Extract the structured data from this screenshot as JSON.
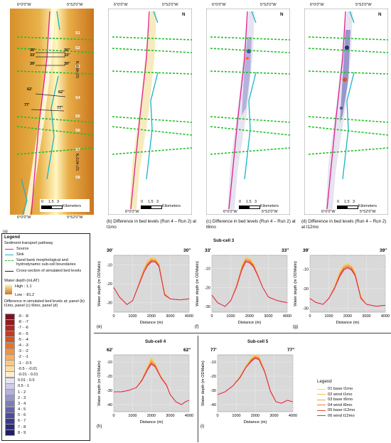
{
  "maps": {
    "coord_top_left": "6°0'0\"W",
    "coord_top_right": "5°52'0\"W",
    "coord_bottom_left": "6°0'0\"W",
    "coord_bottom_right": "5°52'0\"W",
    "lat_upper": "52°48'0\"N",
    "lat_lower": "52°40'0\"N",
    "north": "N",
    "scale_labels": [
      "0",
      "1.5",
      "3"
    ],
    "scale_unit": "Kilometers",
    "subcells": [
      "S1",
      "S2",
      "S3",
      "S4",
      "S5",
      "S6",
      "S7",
      "S8"
    ],
    "section_labels": {
      "a30": "30'",
      "b30": "30''",
      "a33": "33'",
      "b33": "33''",
      "a39": "39'",
      "b39": "39''",
      "a62": "62'",
      "b62": "62''",
      "a77": "77'",
      "b77": "77''"
    },
    "captions": {
      "a": "(a)",
      "b": "(b) Difference in bed levels (Run 4 – Run 2) at t1mo",
      "c": "(c) Difference in bed levels (Run 4 – Run 2) at t6mo",
      "d": "(d) Difference in bed levels (Run 4 – Run 2) at t12mo"
    }
  },
  "legend": {
    "title": "Legend",
    "pathway_title": "Sediment transport pathway",
    "source": "Source",
    "sink": "Sink",
    "boundaries": "Sand bank morphological and hydrodynamic sub-cell boundaries",
    "cross_section": "Cross-section of simulated bed levels",
    "water_depth": "Water depth (mLAT)",
    "high": "High : 1.1",
    "low": "Low : -81.2",
    "diff_title": "Difference in simulated bed levels at; panel (b) t1mo, panel (c) t6mo, panel (d)",
    "classes": [
      {
        "label": "-9 - -8",
        "color": "#7a1420"
      },
      {
        "label": "-8 - -7",
        "color": "#8f1d22"
      },
      {
        "label": "-7 - -6",
        "color": "#a82a22"
      },
      {
        "label": "-6 - -5",
        "color": "#c23b1f"
      },
      {
        "label": "-5 - -4",
        "color": "#d8561e"
      },
      {
        "label": "-4 - -3",
        "color": "#e8742b"
      },
      {
        "label": "-3 - -2",
        "color": "#f19341"
      },
      {
        "label": "-2 - -1",
        "color": "#f6b060"
      },
      {
        "label": "-1 - -0.5",
        "color": "#f9c988"
      },
      {
        "label": "-0.5 - -0.01",
        "color": "#fbdcab"
      },
      {
        "label": "-0.01 - 0.01",
        "color": "#fdf0cf"
      },
      {
        "label": "0.01 - 0.5",
        "color": "#e6e4f2"
      },
      {
        "label": "0.5 - 1",
        "color": "#cfcce8"
      },
      {
        "label": "1 - 2",
        "color": "#b3b2dc"
      },
      {
        "label": "2 - 3",
        "color": "#9797cd"
      },
      {
        "label": "3 - 4",
        "color": "#7c7cbe"
      },
      {
        "label": "4 - 5",
        "color": "#6363ae"
      },
      {
        "label": "5 - 6",
        "color": "#4d4c9c"
      },
      {
        "label": "6 - 7",
        "color": "#3a3a8a"
      },
      {
        "label": "7 - 8",
        "color": "#2c2b78"
      },
      {
        "label": "8 - 9",
        "color": "#1f1d63"
      }
    ]
  },
  "profiles": {
    "subcell3": "Sub-cell 3",
    "subcell4": "Sub-cell 4",
    "subcell5": "Sub-cell 5",
    "ylabel": "Water depth (m ODMalin)",
    "xlabel": "Distance (m)",
    "panels": {
      "e": {
        "letter": "(e)",
        "left": "30'",
        "right": "30''"
      },
      "f": {
        "letter": "(f)",
        "left": "33'",
        "right": "33''"
      },
      "g": {
        "letter": "(g)",
        "left": "39'",
        "right": "39''"
      },
      "h": {
        "letter": "(h)",
        "left": "62'",
        "right": "62''"
      },
      "i": {
        "letter": "(i)",
        "left": "77'",
        "right": "77''"
      }
    },
    "series_legend_title": "Legend",
    "series": [
      {
        "name": "01 base t1mo",
        "color": "#fbd84a"
      },
      {
        "name": "02 wind t1mo",
        "color": "#f7c04a"
      },
      {
        "name": "03 base t6mo",
        "color": "#f2a24a"
      },
      {
        "name": "04 wind t6mo",
        "color": "#ee7a3a"
      },
      {
        "name": "05 base t12mo",
        "color": "#e34a2c"
      },
      {
        "name": "06 wind t12mo",
        "color": "#e0285a"
      }
    ]
  },
  "chart_data": [
    {
      "type": "line",
      "panel": "e",
      "xlabel": "Distance (m)",
      "ylabel": "Water depth (m ODMalin)",
      "xlim": [
        0,
        4000
      ],
      "ylim": [
        -35,
        -5
      ],
      "xticks": [
        0,
        1000,
        2000,
        3000,
        4000
      ],
      "yticks": [
        -10,
        -20,
        -30
      ],
      "x": [
        0,
        300,
        700,
        1000,
        1300,
        1600,
        1800,
        2000,
        2200,
        2400,
        2700,
        3000,
        3500,
        4000
      ],
      "series": [
        {
          "name": "01 base t1mo",
          "values": [
            -22,
            -27,
            -31,
            -29,
            -21,
            -12,
            -8,
            -6,
            -6.5,
            -9,
            -25,
            -28,
            -28.5,
            -28
          ]
        },
        {
          "name": "02 wind t1mo",
          "values": [
            -22,
            -27,
            -31,
            -29,
            -21,
            -12,
            -8,
            -6.5,
            -7,
            -9.5,
            -25,
            -28,
            -28.5,
            -28
          ]
        },
        {
          "name": "03 base t6mo",
          "values": [
            -22,
            -27,
            -31,
            -29,
            -21,
            -13,
            -9,
            -7,
            -7.5,
            -10,
            -25.5,
            -28,
            -28.5,
            -28
          ]
        },
        {
          "name": "04 wind t6mo",
          "values": [
            -22,
            -27,
            -31,
            -29,
            -21,
            -13,
            -9.5,
            -7.5,
            -8,
            -10.5,
            -25.5,
            -28,
            -28.5,
            -28
          ]
        },
        {
          "name": "05 base t12mo",
          "values": [
            -22,
            -27,
            -31,
            -29,
            -21.5,
            -14,
            -10,
            -8,
            -8,
            -10.5,
            -26,
            -28,
            -28.5,
            -28
          ]
        },
        {
          "name": "06 wind t12mo",
          "values": [
            -22,
            -27,
            -31,
            -29,
            -21.5,
            -14,
            -10.5,
            -8.5,
            -8.5,
            -11,
            -26,
            -28,
            -28.5,
            -28
          ]
        }
      ]
    },
    {
      "type": "line",
      "panel": "f",
      "xlabel": "Distance (m)",
      "ylabel": "Water depth (m ODMalin)",
      "xlim": [
        0,
        4000
      ],
      "ylim": [
        -33,
        -3
      ],
      "xticks": [
        0,
        1000,
        2000,
        3000,
        4000
      ],
      "yticks": [
        -10,
        -20,
        -30
      ],
      "x": [
        0,
        300,
        700,
        1000,
        1300,
        1600,
        1800,
        2000,
        2200,
        2400,
        2700,
        3000,
        3500,
        4000
      ],
      "series": [
        {
          "name": "01 base t1mo",
          "values": [
            -24,
            -28,
            -30,
            -27,
            -19,
            -8,
            -4,
            -4.5,
            -7,
            -12,
            -20,
            -25,
            -27,
            -28
          ]
        },
        {
          "name": "02 wind t1mo",
          "values": [
            -24,
            -28,
            -30,
            -27,
            -19,
            -8.5,
            -4.5,
            -5,
            -7.5,
            -12,
            -20,
            -25,
            -27,
            -28
          ]
        },
        {
          "name": "03 base t6mo",
          "values": [
            -24,
            -28,
            -30,
            -27,
            -19.5,
            -9,
            -5,
            -5.5,
            -8,
            -12.5,
            -20,
            -25,
            -27,
            -28
          ]
        },
        {
          "name": "04 wind t6mo",
          "values": [
            -24,
            -28,
            -30,
            -27,
            -19.5,
            -9.5,
            -5.5,
            -6,
            -8,
            -12.5,
            -20,
            -25,
            -27,
            -28
          ]
        },
        {
          "name": "05 base t12mo",
          "values": [
            -24,
            -28,
            -30,
            -27,
            -20,
            -10,
            -6,
            -6.5,
            -8.5,
            -13,
            -20,
            -25,
            -27,
            -28
          ]
        },
        {
          "name": "06 wind t12mo",
          "values": [
            -24,
            -28,
            -30,
            -27,
            -20,
            -10.5,
            -6.5,
            -7,
            -9,
            -13,
            -20,
            -25,
            -27,
            -28
          ]
        }
      ]
    },
    {
      "type": "line",
      "panel": "g",
      "xlabel": "Distance (m)",
      "ylabel": "Water depth (m ODMalin)",
      "xlim": [
        0,
        4000
      ],
      "ylim": [
        -32,
        -3
      ],
      "xticks": [
        0,
        1000,
        2000,
        3000,
        4000
      ],
      "yticks": [
        -10,
        -20,
        -30
      ],
      "x": [
        0,
        300,
        700,
        1000,
        1300,
        1600,
        1800,
        2000,
        2200,
        2400,
        2700,
        3000,
        3500,
        4000
      ],
      "series": [
        {
          "name": "01 base t1mo",
          "values": [
            -25,
            -27,
            -28,
            -25,
            -19,
            -11,
            -8,
            -7,
            -8,
            -12,
            -24,
            -28,
            -29,
            -28.5
          ]
        },
        {
          "name": "02 wind t1mo",
          "values": [
            -25,
            -27,
            -28,
            -25,
            -19,
            -11.5,
            -8.5,
            -7.5,
            -8.5,
            -12,
            -24,
            -28,
            -29,
            -28.5
          ]
        },
        {
          "name": "03 base t6mo",
          "values": [
            -25,
            -27,
            -28,
            -25,
            -19.5,
            -12,
            -9,
            -8,
            -9,
            -12.5,
            -24.5,
            -28,
            -29,
            -28.5
          ]
        },
        {
          "name": "04 wind t6mo",
          "values": [
            -25,
            -27,
            -28,
            -25,
            -19.5,
            -12.5,
            -9.5,
            -8.5,
            -9.5,
            -13,
            -24.5,
            -28,
            -29,
            -28.5
          ]
        },
        {
          "name": "05 base t12mo",
          "values": [
            -25,
            -27,
            -28,
            -25,
            -20,
            -13,
            -10,
            -9,
            -10,
            -13,
            -25,
            -28,
            -29,
            -28.5
          ]
        },
        {
          "name": "06 wind t12mo",
          "values": [
            -25,
            -27,
            -28,
            -25,
            -20,
            -13.5,
            -10.5,
            -9.5,
            -10.5,
            -13.5,
            -25,
            -28,
            -29,
            -28.5
          ]
        }
      ]
    },
    {
      "type": "line",
      "panel": "h",
      "xlabel": "Distance (m)",
      "ylabel": "Water depth (m ODMalin)",
      "xlim": [
        0,
        4000
      ],
      "ylim": [
        -45,
        -5
      ],
      "xticks": [
        0,
        1000,
        2000,
        3000,
        4000
      ],
      "yticks": [
        -10,
        -20,
        -30,
        -40
      ],
      "x": [
        0,
        400,
        800,
        1200,
        1500,
        1800,
        2000,
        2200,
        2500,
        2800,
        3000,
        3300,
        3600,
        3800,
        4000
      ],
      "series": [
        {
          "name": "01 base t1mo",
          "values": [
            -31,
            -31,
            -30,
            -28,
            -22,
            -13,
            -7,
            -11,
            -20,
            -26,
            -33,
            -38,
            -40,
            -38,
            -37
          ]
        },
        {
          "name": "02 wind t1mo",
          "values": [
            -31,
            -31,
            -30,
            -28,
            -22,
            -13.5,
            -8,
            -11.5,
            -20,
            -26,
            -33,
            -38,
            -40,
            -38,
            -37
          ]
        },
        {
          "name": "03 base t6mo",
          "values": [
            -31,
            -31,
            -30,
            -28,
            -22.5,
            -14,
            -9,
            -12,
            -20.5,
            -26,
            -33,
            -38,
            -40,
            -38,
            -37
          ]
        },
        {
          "name": "04 wind t6mo",
          "values": [
            -31,
            -31,
            -30,
            -28,
            -22.5,
            -14.5,
            -10,
            -12.5,
            -20.5,
            -26,
            -33,
            -38,
            -40,
            -38,
            -37
          ]
        },
        {
          "name": "05 base t12mo",
          "values": [
            -31,
            -31,
            -30,
            -28,
            -23,
            -15,
            -11,
            -13,
            -21,
            -26.5,
            -33,
            -38,
            -40,
            -38,
            -37
          ]
        },
        {
          "name": "06 wind t12mo",
          "values": [
            -31,
            -31,
            -30,
            -28,
            -23,
            -15.5,
            -11.5,
            -13.5,
            -21,
            -26.5,
            -33,
            -38,
            -40,
            -38,
            -37
          ]
        }
      ]
    },
    {
      "type": "line",
      "panel": "i",
      "xlabel": "Distance (m)",
      "ylabel": "Water depth (m ODMalin)",
      "xlim": [
        0,
        4000
      ],
      "ylim": [
        -45,
        -5
      ],
      "xticks": [
        0,
        1000,
        2000,
        3000,
        4000
      ],
      "yticks": [
        -10,
        -20,
        -30,
        -40
      ],
      "x": [
        0,
        400,
        800,
        1200,
        1500,
        1800,
        2000,
        2200,
        2500,
        2800,
        3100,
        3400,
        3700,
        4000
      ],
      "series": [
        {
          "name": "01 base t1mo",
          "values": [
            -33,
            -31,
            -27,
            -20,
            -13,
            -7,
            -5,
            -6,
            -16,
            -30,
            -38,
            -39,
            -37,
            -38
          ]
        },
        {
          "name": "02 wind t1mo",
          "values": [
            -33,
            -31,
            -27,
            -20,
            -13,
            -7.5,
            -5.5,
            -6.5,
            -16,
            -30,
            -38,
            -39,
            -37,
            -38
          ]
        },
        {
          "name": "03 base t6mo",
          "values": [
            -33,
            -31,
            -27,
            -20.5,
            -13.5,
            -8,
            -6,
            -7,
            -16.5,
            -30,
            -38,
            -39,
            -37,
            -38
          ]
        },
        {
          "name": "04 wind t6mo",
          "values": [
            -33,
            -31,
            -27,
            -20.5,
            -13.5,
            -8.5,
            -6.5,
            -7.5,
            -16.5,
            -30,
            -38,
            -39,
            -37,
            -38
          ]
        },
        {
          "name": "05 base t12mo",
          "values": [
            -33,
            -31,
            -27,
            -21,
            -14,
            -9,
            -7,
            -8,
            -17,
            -30.5,
            -38,
            -39,
            -37,
            -38
          ]
        },
        {
          "name": "06 wind t12mo",
          "values": [
            -33,
            -31,
            -27,
            -21,
            -14,
            -9.5,
            -7.5,
            -8.5,
            -17,
            -30.5,
            -38,
            -39,
            -37,
            -38
          ]
        }
      ]
    }
  ]
}
